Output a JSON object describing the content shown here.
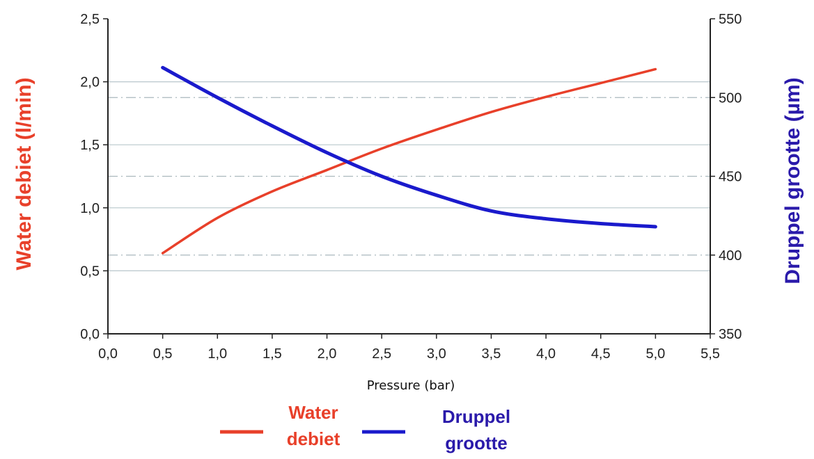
{
  "chart_data": {
    "type": "line",
    "xlabel": "Pressure (bar)",
    "x_ticks": [
      "0,0",
      "0,5",
      "1,0",
      "1,5",
      "2,0",
      "2,5",
      "3,0",
      "3,5",
      "4,0",
      "4,5",
      "5,0",
      "5,5"
    ],
    "xlim": [
      0,
      5.5
    ],
    "ylabel_left": "Water debiet (l/min)",
    "y_left_ticks": [
      "0,0",
      "0,5",
      "1,0",
      "1,5",
      "2,0",
      "2,5"
    ],
    "ylim_left": [
      0,
      2.5
    ],
    "ylabel_right": "Druppel grootte (µm)",
    "y_right_ticks": [
      "350",
      "400",
      "450",
      "500",
      "550"
    ],
    "ylim_right": [
      350,
      550
    ],
    "series": [
      {
        "name": "Water debiet",
        "axis": "left",
        "color": "#e8402a",
        "x": [
          0.5,
          1.0,
          1.5,
          2.0,
          2.5,
          3.0,
          3.5,
          4.0,
          4.5,
          5.0
        ],
        "y": [
          0.64,
          0.92,
          1.13,
          1.3,
          1.47,
          1.62,
          1.76,
          1.88,
          1.99,
          2.1
        ]
      },
      {
        "name": "Druppel grootte",
        "axis": "right",
        "color": "#1a1acc",
        "x": [
          0.5,
          1.0,
          1.5,
          2.0,
          2.5,
          3.0,
          3.5,
          4.0,
          4.5,
          5.0
        ],
        "y": [
          519,
          500,
          482,
          465,
          450,
          438,
          428,
          423,
          420,
          418
        ]
      }
    ],
    "legend": {
      "placement": "bottom",
      "items": [
        {
          "label_line1": "Water",
          "label_line2": "debiet",
          "color": "#e8402a"
        },
        {
          "label_line1": "Druppel",
          "label_line2": "grootte",
          "color": "#1a1acc"
        }
      ]
    },
    "grid": true
  }
}
